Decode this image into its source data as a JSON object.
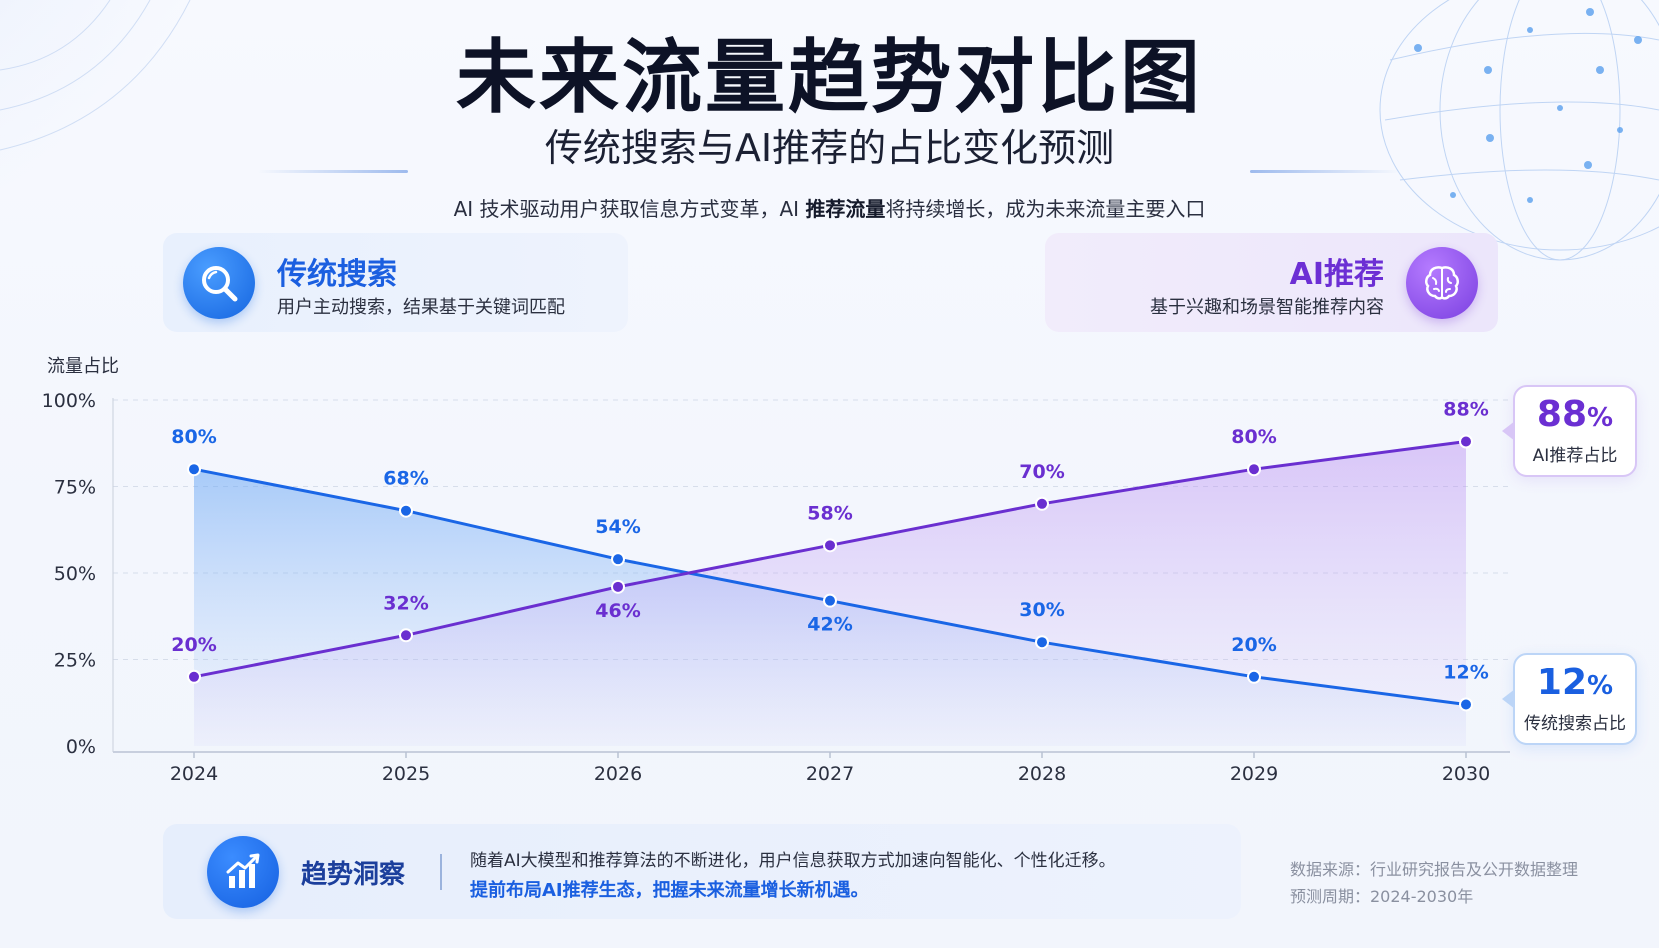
{
  "header": {
    "title": "未来流量趋势对比图",
    "subtitle": "传统搜索与AI推荐的占比变化预测",
    "desc_pre": "AI 技术驱动用户获取信息方式变革，AI ",
    "desc_bold": "推荐流量",
    "desc_post": "将持续增长，成为未来流量主要入口"
  },
  "cards": {
    "search": {
      "title": "传统搜索",
      "subtitle": "用户主动搜索，结果基于关键词匹配",
      "icon": "magnifier-icon"
    },
    "ai": {
      "title": "AI推荐",
      "subtitle": "基于兴趣和场景智能推荐内容",
      "icon": "brain-icon"
    }
  },
  "chart_data": {
    "type": "line",
    "ylabel": "流量占比",
    "x": [
      "2024",
      "2025",
      "2026",
      "2027",
      "2028",
      "2029",
      "2030"
    ],
    "ylim": [
      0,
      100
    ],
    "yticks": [
      "0%",
      "25%",
      "50%",
      "75%",
      "100%"
    ],
    "grid": true,
    "series": [
      {
        "name": "传统搜索",
        "color": "#1a66e6",
        "values": [
          80,
          68,
          54,
          42,
          30,
          20,
          12
        ],
        "labels": [
          "80%",
          "68%",
          "54%",
          "42%",
          "30%",
          "20%",
          "12%"
        ]
      },
      {
        "name": "AI推荐",
        "color": "#6a2fd0",
        "values": [
          20,
          32,
          46,
          58,
          70,
          80,
          88
        ],
        "labels": [
          "20%",
          "32%",
          "46%",
          "58%",
          "70%",
          "80%",
          "88%"
        ]
      }
    ]
  },
  "callouts": {
    "ai": {
      "value": "88",
      "unit": "%",
      "label": "AI推荐占比"
    },
    "search": {
      "value": "12",
      "unit": "%",
      "label": "传统搜索占比"
    }
  },
  "insight": {
    "title": "趋势洞察",
    "line1": "随着AI大模型和推荐算法的不断进化，用户信息获取方式加速向智能化、个性化迁移。",
    "line2": "提前布局AI推荐生态，把握未来流量增长新机遇。",
    "icon": "trend-chart-icon"
  },
  "source": {
    "line1": "数据来源：行业研究报告及公开数据整理",
    "line2": "预测周期：2024-2030年"
  }
}
